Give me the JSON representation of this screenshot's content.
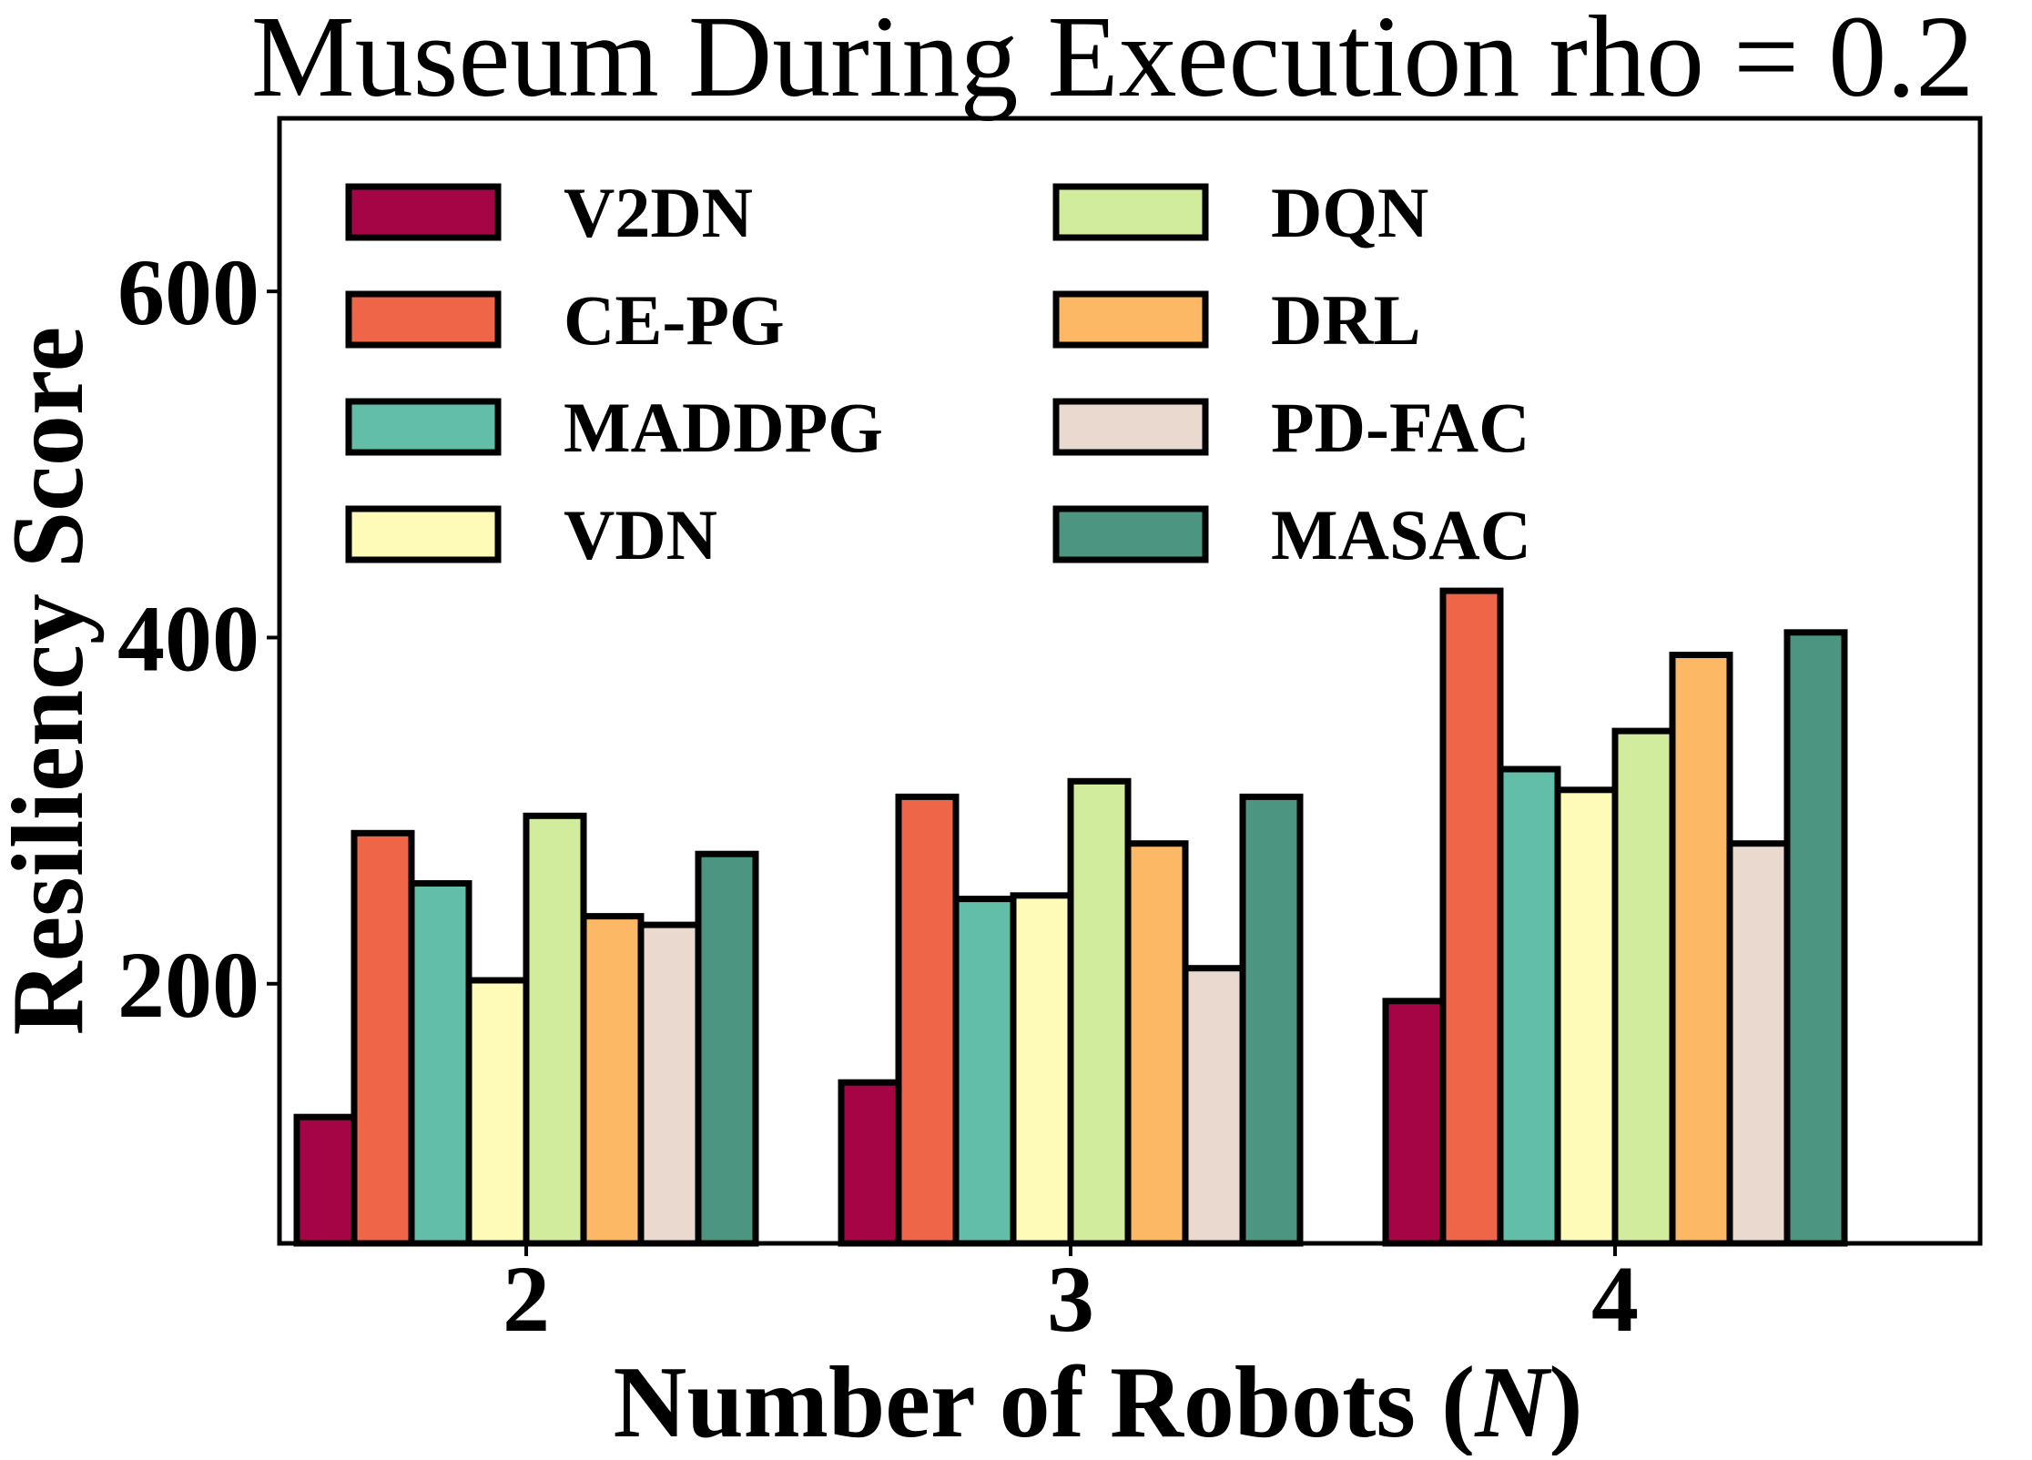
{
  "chart_data": {
    "type": "bar",
    "title": "Museum During Execution rho = 0.2",
    "xlabel_prefix": "Number of Robots (",
    "xlabel_var": "N",
    "xlabel_suffix": ")",
    "ylabel": "Resiliency Score",
    "categories": [
      "2",
      "3",
      "4"
    ],
    "ylim": [
      50,
      700
    ],
    "yticks": [
      "200",
      "400",
      "600"
    ],
    "ytick_values": [
      200,
      400,
      600
    ],
    "grid": false,
    "legend_placement": "top-left",
    "legend_columns": 2,
    "series": [
      {
        "name": "V2DN",
        "color": "#a50544",
        "values": [
          123,
          143,
          190
        ]
      },
      {
        "name": "CE-PG",
        "color": "#ee6548",
        "values": [
          287,
          308,
          427
        ]
      },
      {
        "name": "MADDPG",
        "color": "#62bea6",
        "values": [
          258,
          249,
          324
        ]
      },
      {
        "name": "VDN",
        "color": "#fefab8",
        "values": [
          202,
          251,
          312
        ]
      },
      {
        "name": "DQN",
        "color": "#d0ec9c",
        "values": [
          297,
          317,
          346
        ]
      },
      {
        "name": "DRL",
        "color": "#fdb866",
        "values": [
          239,
          281,
          390
        ]
      },
      {
        "name": "PD-FAC",
        "color": "#ead9cf",
        "values": [
          234,
          209,
          281
        ]
      },
      {
        "name": "MASAC",
        "color": "#4c9580",
        "values": [
          275,
          308,
          403
        ]
      }
    ]
  }
}
